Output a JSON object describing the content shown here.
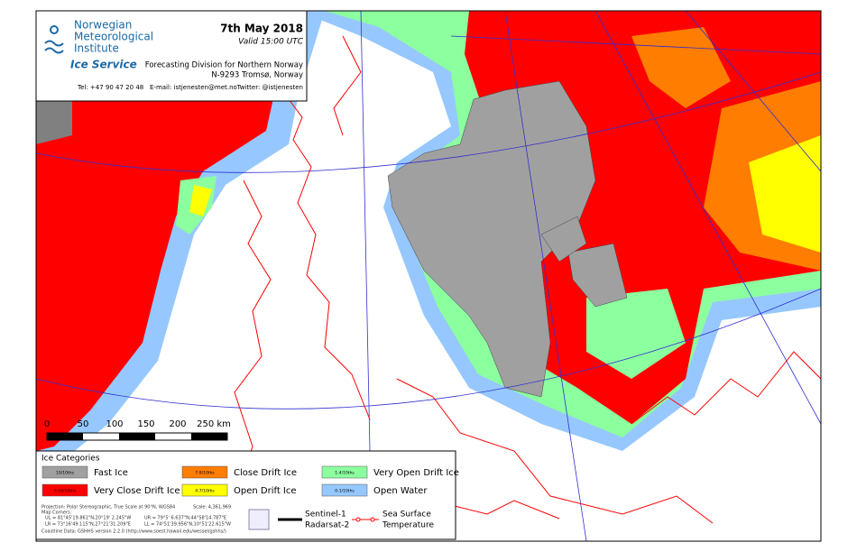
{
  "header": {
    "org": [
      "Norwegian",
      "Meteorological",
      "Institute"
    ],
    "service": "Ice Service",
    "date": "7th May 2018",
    "valid": "Valid 15:00 UTC",
    "division": "Forecasting Division for Northern Norway",
    "address": "N-9293 Tromsø, Norway",
    "phone": "Tel: +47 90 47 20 48",
    "email": "E-mail: istjenesten@met.no",
    "twitter": "Twitter: @istjenesten"
  },
  "scale_bar": [
    "0",
    "50",
    "100",
    "150",
    "200",
    "250 km"
  ],
  "legend": {
    "title": "Ice Categories",
    "items": [
      {
        "code": "10/10ths",
        "label": "Fast Ice",
        "color": "#a0a0a0"
      },
      {
        "code": "7-9/10ths",
        "label": "Close Drift Ice",
        "color": "#ff7d00"
      },
      {
        "code": "1-4/10ths",
        "label": "Very Open Drift Ice",
        "color": "#8cff9f"
      },
      {
        "code": "9-10/10ths",
        "label": "Very Close Drift Ice",
        "color": "#ff0000"
      },
      {
        "code": "4-7/10ths",
        "label": "Open Drift Ice",
        "color": "#ffff00"
      },
      {
        "code": "0-1/10ths",
        "label": "Open Water",
        "color": "#96c8ff"
      }
    ],
    "notes": [
      "Projection: Polar Stereographic, True Scale at 90°N, WGS84",
      "Map Corners:",
      "UL = 81°45'19.861\"N,20°19' 2.245\"W",
      "UR = 79°5' 6.637\"N,44°58'14.787\"E",
      "LR = 73°16'49.115\"N,27°21'31.209\"E",
      "LL = 74°51'39.956\"N,10°51'22.615\"W",
      "Coastline Data: GSHHS version 2.2.0 (http://www.soest.hawaii.edu/wessel/gshhs/)"
    ],
    "scale": "Scale: 4,361,969",
    "sources": [
      "Sentinel-1",
      "Radarsat-2"
    ],
    "sst": [
      "Sea Surface",
      "Temperature"
    ]
  }
}
